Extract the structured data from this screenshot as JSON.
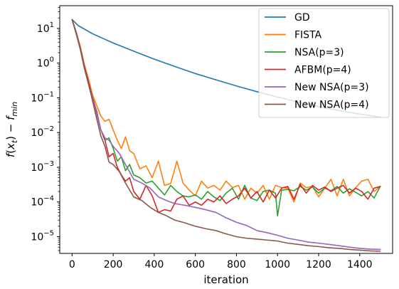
{
  "chart_data": {
    "type": "line",
    "xlabel": "iteration",
    "ylabel": "f(x_t) − f_min",
    "xscale": "linear",
    "yscale": "log",
    "xlim": [
      -60,
      1560
    ],
    "ylim": [
      3.3e-06,
      45
    ],
    "xticks": [
      0,
      200,
      400,
      600,
      800,
      1000,
      1200,
      1400
    ],
    "yticks": [
      {
        "value": 10.0,
        "base": "10",
        "exp": "1"
      },
      {
        "value": 1.0,
        "base": "10",
        "exp": "0"
      },
      {
        "value": 0.1,
        "base": "10",
        "exp": "−1"
      },
      {
        "value": 0.01,
        "base": "10",
        "exp": "−2"
      },
      {
        "value": 0.001,
        "base": "10",
        "exp": "−3"
      },
      {
        "value": 0.0001,
        "base": "10",
        "exp": "−4"
      },
      {
        "value": 1e-05,
        "base": "10",
        "exp": "−5"
      }
    ],
    "legend_position": "top-right",
    "grid": false,
    "series": [
      {
        "name": "GD",
        "color": "#1f77b4",
        "x": [
          0,
          30,
          100,
          200,
          300,
          400,
          500,
          600,
          700,
          800,
          900,
          1000,
          1100,
          1200,
          1300,
          1400,
          1500
        ],
        "y": [
          18,
          12.0,
          7.0,
          3.8,
          2.2,
          1.3,
          0.8,
          0.5,
          0.33,
          0.22,
          0.15,
          0.105,
          0.076,
          0.056,
          0.043,
          0.034,
          0.028
        ]
      },
      {
        "name": "FISTA",
        "color": "#ff7f0e",
        "x": [
          0,
          20,
          40,
          60,
          80,
          100,
          120,
          140,
          160,
          180,
          200,
          220,
          240,
          260,
          280,
          300,
          330,
          360,
          390,
          420,
          450,
          480,
          510,
          540,
          570,
          600,
          630,
          660,
          690,
          720,
          750,
          780,
          810,
          840,
          870,
          900,
          930,
          960,
          990,
          1020,
          1050,
          1080,
          1110,
          1140,
          1170,
          1200,
          1230,
          1260,
          1290,
          1320,
          1350,
          1380,
          1410,
          1440,
          1470,
          1500
        ],
        "y": [
          18,
          8,
          3.0,
          0.9,
          0.35,
          0.12,
          0.06,
          0.03,
          0.021,
          0.024,
          0.012,
          0.006,
          0.0035,
          0.0075,
          0.003,
          0.0025,
          0.0009,
          0.0011,
          0.0005,
          0.0015,
          0.0003,
          0.00034,
          0.0015,
          0.00035,
          0.00022,
          0.00015,
          0.0004,
          0.00025,
          0.0003,
          0.00022,
          0.0004,
          0.00026,
          0.0003,
          0.00012,
          0.00025,
          0.00018,
          0.0003,
          0.00012,
          0.0003,
          0.00026,
          0.00025,
          0.0001,
          0.00035,
          0.00026,
          0.00028,
          0.00014,
          0.00025,
          0.00045,
          0.00015,
          0.00045,
          0.00015,
          0.00026,
          0.0004,
          0.00045,
          0.0002,
          0.00028
        ]
      },
      {
        "name": "NSA(p=3)",
        "color": "#2ca02c",
        "x": [
          0,
          20,
          40,
          60,
          80,
          100,
          120,
          140,
          160,
          180,
          200,
          220,
          240,
          260,
          280,
          300,
          330,
          360,
          390,
          420,
          450,
          480,
          510,
          540,
          570,
          600,
          630,
          660,
          690,
          720,
          750,
          780,
          810,
          840,
          870,
          900,
          930,
          960,
          990,
          1000,
          1020,
          1050,
          1080,
          1110,
          1140,
          1170,
          1200,
          1230,
          1260,
          1290,
          1320,
          1350,
          1380,
          1410,
          1440,
          1470,
          1500
        ],
        "y": [
          18,
          7,
          2.5,
          0.7,
          0.25,
          0.09,
          0.035,
          0.012,
          0.006,
          0.007,
          0.0035,
          0.0015,
          0.002,
          0.0008,
          0.0012,
          0.0006,
          0.0005,
          0.00035,
          0.0004,
          0.00025,
          0.00016,
          0.0003,
          0.0002,
          0.00015,
          0.00014,
          0.00016,
          0.00012,
          0.0002,
          0.00014,
          0.00011,
          0.00018,
          0.00025,
          0.00012,
          0.0003,
          0.00013,
          0.00011,
          0.0002,
          0.00022,
          0.00018,
          4e-05,
          0.00022,
          0.00023,
          0.00021,
          0.00028,
          0.00022,
          0.00027,
          0.00018,
          0.00025,
          0.00021,
          0.00028,
          0.00018,
          0.00024,
          0.00019,
          0.00015,
          0.0002,
          0.00013,
          0.00028
        ]
      },
      {
        "name": "AFBM(p=4)",
        "color": "#d62728",
        "x": [
          0,
          20,
          40,
          60,
          80,
          100,
          120,
          140,
          160,
          180,
          200,
          220,
          240,
          260,
          280,
          300,
          330,
          360,
          390,
          420,
          450,
          480,
          510,
          540,
          570,
          600,
          630,
          660,
          690,
          720,
          750,
          780,
          810,
          840,
          870,
          900,
          930,
          960,
          990,
          1020,
          1050,
          1080,
          1110,
          1140,
          1170,
          1200,
          1230,
          1260,
          1290,
          1320,
          1350,
          1380,
          1410,
          1440,
          1470,
          1500
        ],
        "y": [
          18,
          7.5,
          2.8,
          0.8,
          0.28,
          0.1,
          0.04,
          0.012,
          0.006,
          0.002,
          0.0025,
          0.001,
          0.0006,
          0.0004,
          0.0005,
          0.0002,
          0.00012,
          0.0003,
          0.00015,
          5e-05,
          6e-05,
          5.5e-05,
          0.00012,
          0.00015,
          8e-05,
          0.0001,
          8e-05,
          0.00012,
          0.0001,
          0.00015,
          9e-05,
          0.00012,
          0.00015,
          0.00025,
          0.00013,
          0.0002,
          0.0001,
          0.00022,
          0.00013,
          0.00025,
          0.00028,
          0.00012,
          0.00032,
          0.00018,
          0.0003,
          0.00022,
          0.00027,
          0.0002,
          0.00025,
          0.0003,
          0.00018,
          0.00025,
          0.0002,
          0.00012,
          0.00025,
          0.00028
        ]
      },
      {
        "name": "New NSA(p=3)",
        "color": "#9467bd",
        "x": [
          0,
          20,
          40,
          60,
          80,
          100,
          120,
          140,
          160,
          180,
          200,
          230,
          260,
          300,
          340,
          380,
          420,
          460,
          500,
          550,
          600,
          650,
          700,
          750,
          800,
          850,
          900,
          950,
          1000,
          1050,
          1100,
          1150,
          1200,
          1250,
          1300,
          1350,
          1400,
          1450,
          1500
        ],
        "y": [
          18,
          7,
          2.5,
          0.7,
          0.25,
          0.09,
          0.035,
          0.012,
          0.007,
          0.006,
          0.004,
          0.0025,
          0.0012,
          0.00045,
          0.00035,
          0.00025,
          0.00014,
          0.00011,
          9e-05,
          8e-05,
          7e-05,
          6e-05,
          5e-05,
          3.5e-05,
          2.6e-05,
          2.1e-05,
          1.5e-05,
          1.3e-05,
          1.1e-05,
          9e-06,
          8e-06,
          7e-06,
          6.5e-06,
          6e-06,
          5.5e-06,
          5e-06,
          4.6e-06,
          4.4e-06,
          4.3e-06
        ]
      },
      {
        "name": "New NSA(p=4)",
        "color": "#8c564b",
        "x": [
          0,
          20,
          40,
          60,
          80,
          100,
          120,
          140,
          160,
          180,
          200,
          230,
          260,
          300,
          340,
          380,
          420,
          460,
          500,
          550,
          600,
          650,
          700,
          750,
          800,
          850,
          900,
          950,
          1000,
          1050,
          1100,
          1150,
          1200,
          1250,
          1300,
          1350,
          1400,
          1450,
          1500
        ],
        "y": [
          18,
          7.5,
          2.6,
          0.75,
          0.25,
          0.08,
          0.025,
          0.008,
          0.004,
          0.0014,
          0.0012,
          0.00075,
          0.00035,
          0.00014,
          0.00011,
          7e-05,
          5e-05,
          4e-05,
          3e-05,
          2.5e-05,
          2e-05,
          1.7e-05,
          1.5e-05,
          1.2e-05,
          1e-05,
          9e-06,
          8.5e-06,
          8e-06,
          7.5e-06,
          6.5e-06,
          6e-06,
          5.5e-06,
          5.2e-06,
          4.8e-06,
          4.6e-06,
          4.3e-06,
          4.1e-06,
          3.9e-06,
          3.8e-06
        ]
      }
    ]
  }
}
